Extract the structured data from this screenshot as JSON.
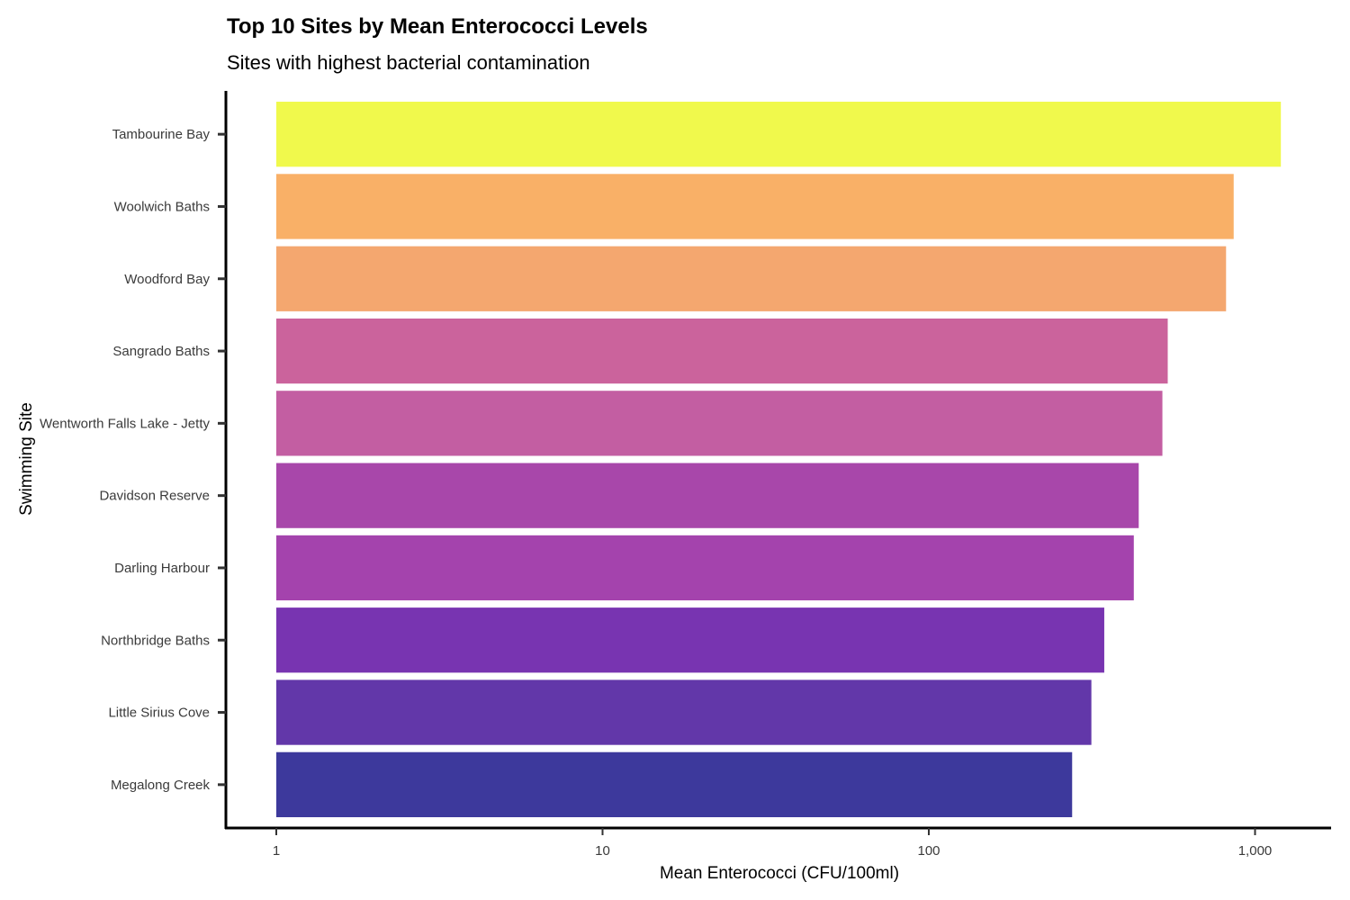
{
  "chart_data": {
    "type": "bar",
    "orientation": "horizontal",
    "title": "Top 10 Sites by Mean Enterococci Levels",
    "subtitle": "Sites with highest bacterial contamination",
    "xlabel": "Mean Enterococci (CFU/100ml)",
    "ylabel": "Swimming Site",
    "x_scale": "log10",
    "xlim": [
      0.73,
      2000
    ],
    "x_ticks": [
      1,
      10,
      100,
      1000
    ],
    "x_tick_labels": [
      "1",
      "10",
      "100",
      "1,000"
    ],
    "grid": false,
    "legend": "none",
    "categories": [
      "Tambourine Bay",
      "Woolwich Baths",
      "Woodford Bay",
      "Sangrado Baths",
      "Wentworth Falls Lake - Jetty",
      "Davidson Reserve",
      "Darling Harbour",
      "Northbridge Baths",
      "Little Sirius Cove",
      "Megalong Creek"
    ],
    "values": [
      1200,
      860,
      815,
      540,
      520,
      440,
      425,
      345,
      315,
      275
    ],
    "colors": [
      "#F0F94C",
      "#F9B067",
      "#F4A76F",
      "#CB639C",
      "#C35EA2",
      "#A847AA",
      "#A443AD",
      "#7834B1",
      "#6237A9",
      "#3D399C"
    ]
  }
}
